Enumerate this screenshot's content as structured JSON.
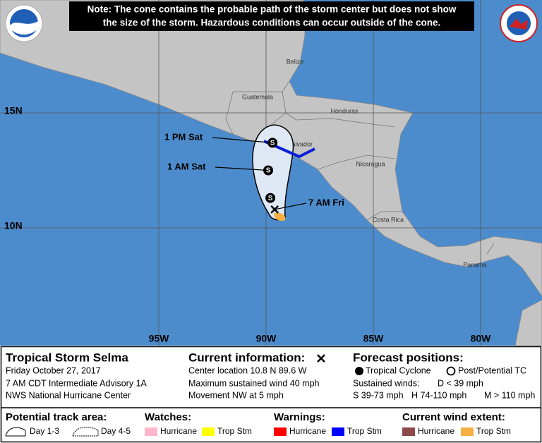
{
  "note": [
    "Note: The cone contains the probable path of the storm center but does not show",
    "the size of the storm. Hazardous conditions can occur outside of the cone."
  ],
  "grid": {
    "lat": [
      {
        "value": 15,
        "label": "15N"
      },
      {
        "value": 10,
        "label": "10N"
      }
    ],
    "lon": [
      {
        "value": 95,
        "label": "95W"
      },
      {
        "value": 90,
        "label": "90W"
      },
      {
        "value": 85,
        "label": "85W"
      },
      {
        "value": 80,
        "label": "80W"
      }
    ]
  },
  "countries": [
    "Belize",
    "Guatemala",
    "Honduras",
    "El Salvador",
    "Nicaragua",
    "Costa Rica",
    "Panama"
  ],
  "forecast": [
    {
      "lat": 11.3,
      "lon": 89.8,
      "symbol": "S"
    },
    {
      "lat": 12.5,
      "lon": 89.9,
      "symbol": "S",
      "label": "1 AM Sat"
    },
    {
      "lat": 13.7,
      "lon": 89.7,
      "symbol": "S",
      "label": "1 PM Sat"
    }
  ],
  "current": {
    "lat": 10.8,
    "lon": 89.6,
    "label": "7 AM Fri"
  },
  "legend": {
    "storm": {
      "title": "Tropical Storm Selma",
      "lines": [
        "Friday October 27, 2017",
        "7 AM CDT Intermediate Advisory 1A",
        "NWS National Hurricane Center"
      ]
    },
    "current": {
      "title": "Current information:",
      "lines": [
        "Center location 10.8 N 89.6 W",
        "Maximum sustained wind 40 mph",
        "Movement NW at 5 mph"
      ]
    },
    "forecast": {
      "title": "Forecast positions:",
      "tropical": "Tropical Cyclone",
      "post": "Post/Potential TC",
      "winds": "Sustained winds:",
      "d": "D < 39 mph",
      "s": "S 39-73 mph",
      "h": "H 74-110 mph",
      "m": "M > 110 mph"
    },
    "track": {
      "title": "Potential track area:",
      "day13": "Day 1-3",
      "day45": "Day 4-5"
    },
    "watches": {
      "title": "Watches:",
      "hurricane": "Hurricane",
      "tropstm": "Trop Stm"
    },
    "warnings": {
      "title": "Warnings:",
      "hurricane": "Hurricane",
      "tropstm": "Trop Stm"
    },
    "wind": {
      "title": "Current wind extent:",
      "hurricane": "Hurricane",
      "tropstm": "Trop Stm"
    }
  }
}
